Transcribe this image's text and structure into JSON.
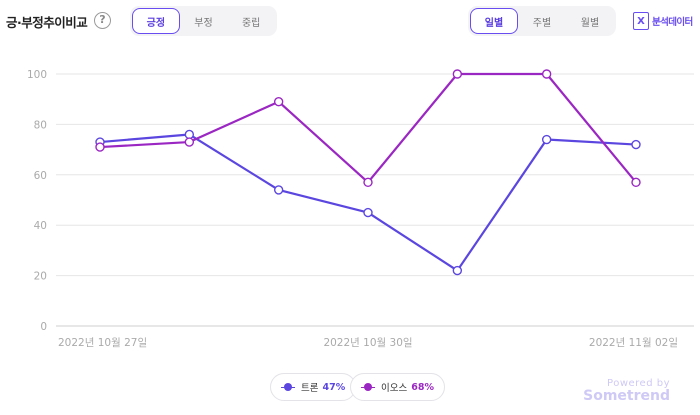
{
  "header": {
    "title": "긍·부정추이비교",
    "help_symbol": "?",
    "sentiment_tabs": [
      {
        "label": "긍정",
        "active": true
      },
      {
        "label": "부정",
        "active": false
      },
      {
        "label": "중립",
        "active": false
      }
    ],
    "period_tabs": [
      {
        "label": "일별",
        "active": true
      },
      {
        "label": "주별",
        "active": false
      },
      {
        "label": "월별",
        "active": false
      }
    ],
    "analysis_icon_letter": "X",
    "analysis_label": "분석데이터"
  },
  "chart_data": {
    "type": "line",
    "x": [
      "2022-10-27",
      "2022-10-28",
      "2022-10-29",
      "2022-10-30",
      "2022-10-31",
      "2022-11-01",
      "2022-11-02"
    ],
    "x_tick_labels": [
      "2022년 10월 27일",
      "2022년 10월 30일",
      "2022년 11월 02일"
    ],
    "x_tick_indices": [
      0,
      3,
      6
    ],
    "y_ticks": [
      0,
      20,
      40,
      60,
      80,
      100
    ],
    "ylim": [
      0,
      100
    ],
    "grid": true,
    "series": [
      {
        "name": "트론",
        "color": "#5b47e0",
        "values": [
          73,
          76,
          54,
          45,
          22,
          74,
          72
        ]
      },
      {
        "name": "이오스",
        "color": "#9b27c3",
        "values": [
          71,
          73,
          89,
          57,
          100,
          100,
          57
        ]
      }
    ],
    "legend": [
      {
        "name": "트론",
        "percent": "47%",
        "color": "#5b47e0"
      },
      {
        "name": "이오스",
        "percent": "68%",
        "color": "#9b27c3"
      }
    ],
    "legend_position": "bottom-center"
  },
  "footer": {
    "powered_by": "Powered by",
    "brand": "Sometrend"
  },
  "colors": {
    "accent": "#6a4df0",
    "grid": "#e6e6e6",
    "axis_text": "#aaaaaa"
  }
}
